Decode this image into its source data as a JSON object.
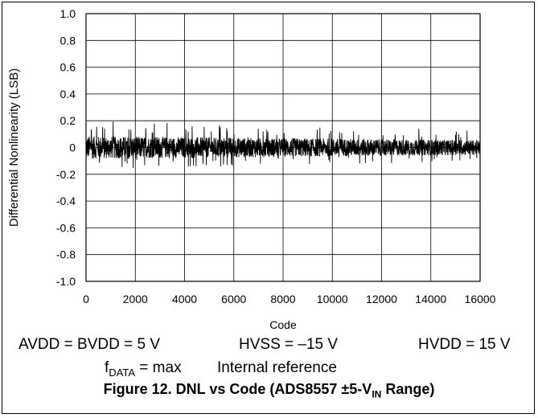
{
  "chart_data": {
    "type": "line",
    "title": "",
    "xlabel": "Code",
    "ylabel": "Differential Nonlinearity (LSB)",
    "xlim": [
      0,
      16000
    ],
    "ylim": [
      -1.0,
      1.0
    ],
    "x_ticks": [
      "0",
      "2000",
      "4000",
      "6000",
      "8000",
      "10000",
      "12000",
      "14000",
      "16000"
    ],
    "y_ticks": [
      "1.0",
      "0.8",
      "0.6",
      "0.4",
      "0.2",
      "0",
      "-0.2",
      "-0.4",
      "-0.6",
      "-0.8",
      "-1.0"
    ],
    "grid": true,
    "series": [
      {
        "color": "#000000",
        "x_range": [
          0,
          16000
        ],
        "center": 0.0,
        "peak_positive": 0.2,
        "peak_negative": -0.16,
        "typical_band": [
          -0.08,
          0.09
        ]
      }
    ]
  },
  "conditions": {
    "row1": {
      "avdd": "AVDD = BVDD = 5 V",
      "hvss": "HVSS = –15 V",
      "hvdd": "HVDD = 15 V"
    },
    "row2": {
      "fdata_f": "f",
      "fdata_sub": "DATA",
      "fdata_rest": " = max",
      "ref": "Internal reference"
    }
  },
  "caption": {
    "pre": "Figure 12. DNL vs Code (ADS8557 ±5-V",
    "sub": "IN",
    "post": " Range)"
  }
}
